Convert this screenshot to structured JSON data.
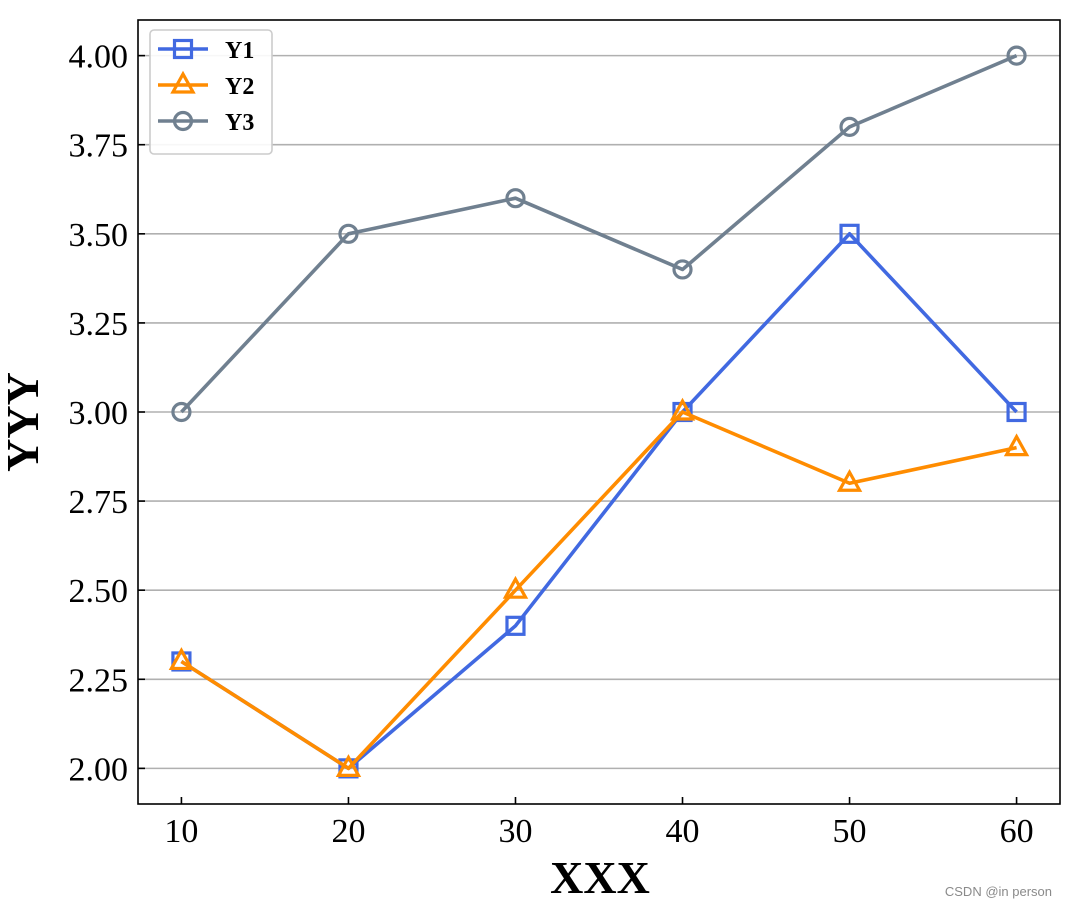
{
  "chart_data": {
    "type": "line",
    "x": [
      10,
      20,
      30,
      40,
      50,
      60
    ],
    "series": [
      {
        "name": "Y1",
        "values": [
          2.3,
          2.0,
          2.4,
          3.0,
          3.5,
          3.0
        ],
        "color": "#4169e1",
        "marker": "square"
      },
      {
        "name": "Y2",
        "values": [
          2.3,
          2.0,
          2.5,
          3.0,
          2.8,
          2.9
        ],
        "color": "#ff8c00",
        "marker": "triangle"
      },
      {
        "name": "Y3",
        "values": [
          3.0,
          3.5,
          3.6,
          3.4,
          3.8,
          4.0
        ],
        "color": "#708090",
        "marker": "circle"
      }
    ],
    "xlabel": "XXX",
    "ylabel": "YYY",
    "xlim": [
      7.4,
      62.6
    ],
    "ylim": [
      1.9,
      4.1
    ],
    "xticks": [
      "10",
      "20",
      "30",
      "40",
      "50",
      "60"
    ],
    "yticks": [
      "2.00",
      "2.25",
      "2.50",
      "2.75",
      "3.00",
      "3.25",
      "3.50",
      "3.75",
      "4.00"
    ],
    "grid": "horizontal",
    "legend_position": "top-left"
  },
  "watermark": "CSDN @in person"
}
